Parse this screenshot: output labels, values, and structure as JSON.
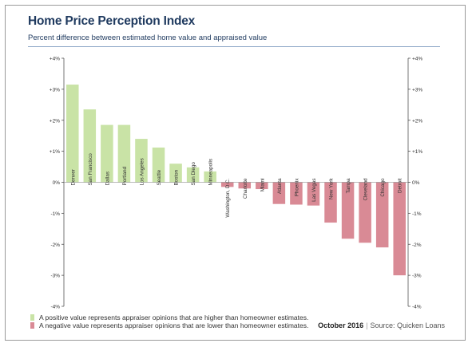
{
  "title": "Home Price Perception Index",
  "subtitle": "Percent difference between estimated home value and appraised value",
  "source": {
    "date": "October 2016",
    "separator": "|",
    "text": "Source: Quicken Loans"
  },
  "colors": {
    "positive": "#c9e3a6",
    "negative": "#d98a95",
    "title": "#1f3a5f",
    "rule": "#8fa8c8"
  },
  "legend": [
    {
      "label": "A positive value represents appraiser opinions that are higher than homeowner estimates.",
      "color": "#c9e3a6"
    },
    {
      "label": "A negative value represents appraiser opinions that are lower than homeowner estimates.",
      "color": "#d98a95"
    }
  ],
  "chart_data": {
    "type": "bar",
    "categories": [
      "Denver",
      "San Francisco",
      "Dallas",
      "Portland",
      "Los Angeles",
      "Seattle",
      "Boston",
      "San Diego",
      "Minneapolis",
      "Washington, D.C.",
      "Charlotte",
      "Miami",
      "Atlanta",
      "Phoenix",
      "Las Vegas",
      "New York",
      "Tampa",
      "Cleveland",
      "Chicago",
      "Detroit"
    ],
    "values": [
      3.15,
      2.35,
      1.85,
      1.85,
      1.4,
      1.12,
      0.6,
      0.48,
      0.35,
      -0.15,
      -0.2,
      -0.22,
      -0.7,
      -0.72,
      -0.75,
      -1.3,
      -1.82,
      -1.95,
      -2.1,
      -3.0
    ],
    "ylim": [
      -4,
      4
    ],
    "yticks": [
      "-4%",
      "-3%",
      "-2%",
      "-1%",
      "0%",
      "+1%",
      "+2%",
      "+3%",
      "+4%"
    ],
    "grid": false,
    "axes": "left and right"
  }
}
